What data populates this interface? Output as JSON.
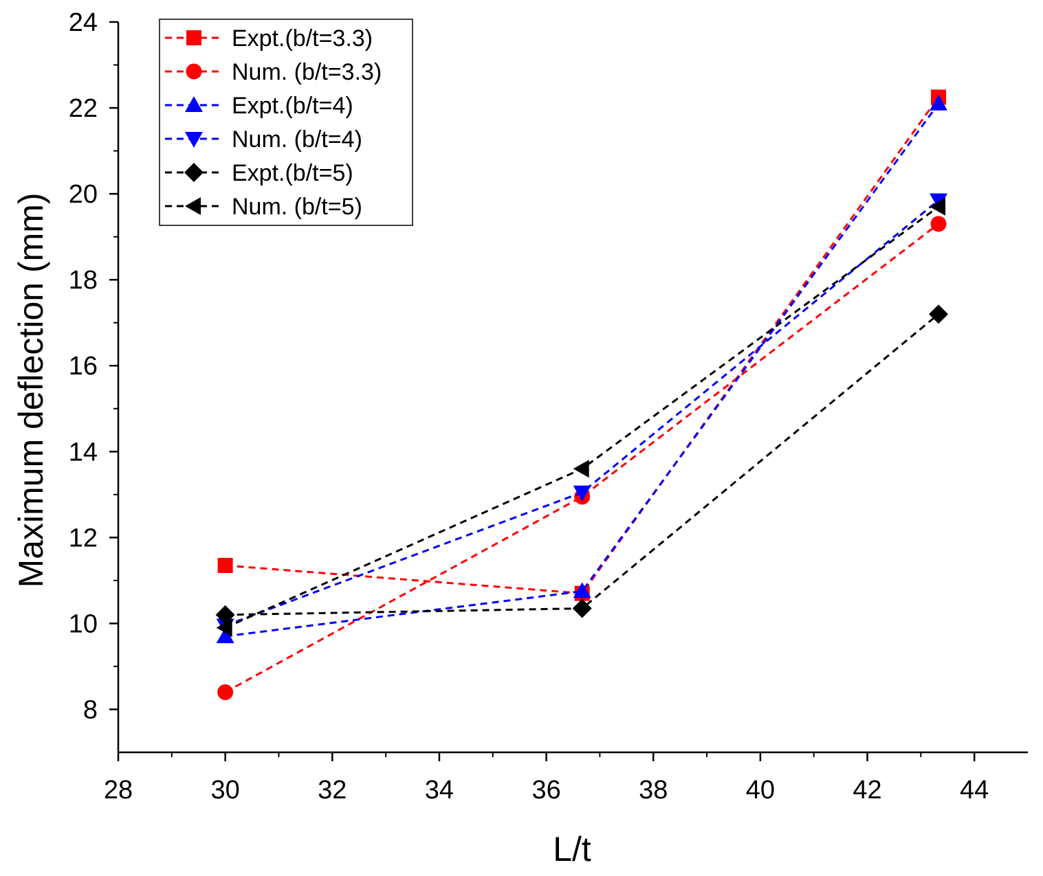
{
  "chart_data": {
    "type": "line",
    "title": "",
    "xlabel": "L/t",
    "ylabel": "Maximum deflection (mm)",
    "xlim": [
      28,
      45
    ],
    "ylim": [
      7,
      24
    ],
    "x": [
      30,
      36.67,
      43.33
    ],
    "xticks": [
      28,
      30,
      32,
      34,
      36,
      38,
      40,
      42,
      44
    ],
    "xtick_labels": [
      "28",
      "30",
      "32",
      "34",
      "36",
      "38",
      "40",
      "42",
      "44"
    ],
    "yticks": [
      8,
      10,
      12,
      14,
      16,
      18,
      20,
      22,
      24
    ],
    "ytick_labels": [
      "8",
      "10",
      "12",
      "14",
      "16",
      "18",
      "20",
      "22",
      "24"
    ],
    "legend_position": "top-left",
    "line_style": "dashed",
    "series": [
      {
        "name": "Expt.(b/t=3.3)",
        "color": "#ff0000",
        "marker": "square",
        "values": [
          11.35,
          10.7,
          22.25
        ]
      },
      {
        "name": "Num. (b/t=3.3)",
        "color": "#ff0000",
        "marker": "circle",
        "values": [
          8.4,
          12.95,
          19.3
        ]
      },
      {
        "name": "Expt.(b/t=4)",
        "color": "#0000ff",
        "marker": "triangle-up",
        "values": [
          9.7,
          10.75,
          22.1
        ]
      },
      {
        "name": "Num. (b/t=4)",
        "color": "#0000ff",
        "marker": "triangle-down",
        "values": [
          9.95,
          13.05,
          19.85
        ]
      },
      {
        "name": "Expt.(b/t=5)",
        "color": "#000000",
        "marker": "diamond",
        "values": [
          10.2,
          10.35,
          17.2
        ]
      },
      {
        "name": "Num. (b/t=5)",
        "color": "#000000",
        "marker": "triangle-left",
        "values": [
          9.9,
          13.6,
          19.7
        ]
      }
    ]
  }
}
